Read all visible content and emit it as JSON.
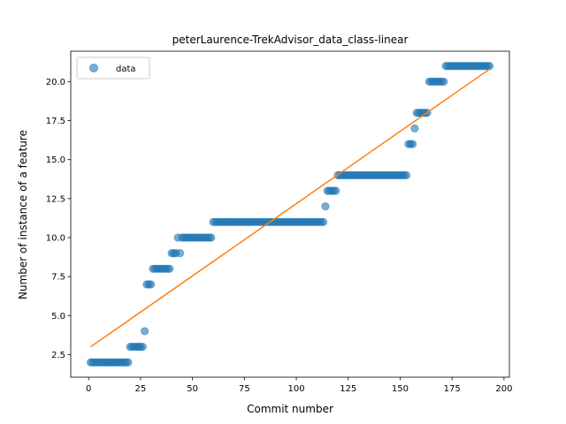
{
  "chart_data": {
    "type": "scatter",
    "title": "peterLaurence-TrekAdvisor_data_class-linear",
    "xlabel": "Commit number",
    "ylabel": "Number of instance of a feature",
    "xlim": [
      -8.6,
      202.6
    ],
    "ylim": [
      1.05,
      21.95
    ],
    "x_ticks": [
      0,
      25,
      50,
      75,
      100,
      125,
      150,
      175,
      200
    ],
    "y_ticks": [
      2.5,
      5.0,
      7.5,
      10.0,
      12.5,
      15.0,
      17.5,
      20.0
    ],
    "y_tick_labels": [
      "2.5",
      "5.0",
      "7.5",
      "10.0",
      "12.5",
      "15.0",
      "17.5",
      "20.0"
    ],
    "grid": false,
    "legend_position": "top-left",
    "series": [
      {
        "name": "data",
        "kind": "points",
        "color": "#1f77b4",
        "segments": [
          {
            "x_from": 1,
            "x_to": 19,
            "y": 2
          },
          {
            "x_from": 20,
            "x_to": 26,
            "y": 3
          },
          {
            "x_from": 27,
            "x_to": 27,
            "y": 4
          },
          {
            "x_from": 28,
            "x_to": 30,
            "y": 7
          },
          {
            "x_from": 31,
            "x_to": 39,
            "y": 8
          },
          {
            "x_from": 40,
            "x_to": 42,
            "y": 9
          },
          {
            "x_from": 43,
            "x_to": 43,
            "y": 10
          },
          {
            "x_from": 44,
            "x_to": 44,
            "y": 9
          },
          {
            "x_from": 45,
            "x_to": 59,
            "y": 10
          },
          {
            "x_from": 60,
            "x_to": 113,
            "y": 11
          },
          {
            "x_from": 114,
            "x_to": 114,
            "y": 12
          },
          {
            "x_from": 115,
            "x_to": 119,
            "y": 13
          },
          {
            "x_from": 120,
            "x_to": 153,
            "y": 14
          },
          {
            "x_from": 154,
            "x_to": 156,
            "y": 16
          },
          {
            "x_from": 157,
            "x_to": 157,
            "y": 17
          },
          {
            "x_from": 158,
            "x_to": 163,
            "y": 18
          },
          {
            "x_from": 164,
            "x_to": 171,
            "y": 20
          },
          {
            "x_from": 172,
            "x_to": 193,
            "y": 21
          }
        ]
      },
      {
        "name": "",
        "kind": "line",
        "color": "#ff7f0e",
        "x": [
          1,
          193
        ],
        "y": [
          3.0,
          20.8
        ]
      }
    ]
  }
}
